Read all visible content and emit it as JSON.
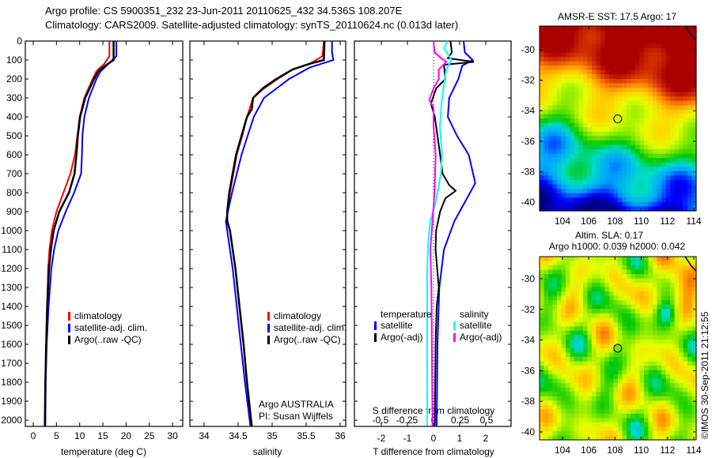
{
  "header": {
    "line1": "Argo profile: CS 5900351_232 23-Jun-2011 20110625_432 34.536S 108.207E",
    "line2": "Climatology: CARS2009. Satellite-adjusted climatology: synTS_20110624.nc (0.013d later)"
  },
  "colors": {
    "climatology": "#ff0000",
    "satellite": "#0000ff",
    "argo": "#000000",
    "sal_satellite": "#00ffff",
    "sal_argo": "#ff00ff"
  },
  "chart_data": [
    {
      "type": "line",
      "name": "temperature",
      "xlabel": "temperature (deg C)",
      "ylabel": "",
      "xlim": [
        -1.7,
        32
      ],
      "ylim": [
        2033,
        0
      ],
      "xticks": [
        "0",
        "5",
        "10",
        "15",
        "20",
        "25",
        "30"
      ],
      "yticks": [
        "0",
        "100",
        "200",
        "300",
        "400",
        "500",
        "600",
        "700",
        "800",
        "900",
        "1000",
        "1100",
        "1200",
        "1300",
        "1400",
        "1500",
        "1600",
        "1700",
        "1800",
        "1900",
        "2000"
      ],
      "legend": [
        "climatology",
        "satellite-adj. clim.",
        "Argo(..raw -QC)"
      ],
      "series": [
        {
          "name": "climatology",
          "color": "#ff0000",
          "depth": [
            0,
            80,
            120,
            160,
            200,
            300,
            400,
            500,
            600,
            700,
            800,
            900,
            1000,
            1100,
            1200,
            1400,
            1600,
            1800,
            2030
          ],
          "values": [
            16.4,
            16.4,
            15.3,
            13.6,
            12.8,
            11.0,
            10.0,
            9.5,
            9.0,
            8.0,
            6.5,
            5.0,
            4.0,
            3.5,
            3.2,
            3.0,
            2.8,
            2.6,
            2.5
          ]
        },
        {
          "name": "satellite-adj. clim.",
          "color": "#0000ff",
          "depth": [
            0,
            80,
            120,
            160,
            200,
            300,
            400,
            500,
            600,
            700,
            800,
            900,
            1000,
            1100,
            1200,
            1400,
            1600,
            1800,
            2030
          ],
          "values": [
            17.9,
            17.9,
            16.2,
            14.5,
            13.6,
            12.0,
            11.0,
            10.6,
            10.5,
            10.3,
            8.8,
            7.0,
            5.4,
            4.5,
            3.9,
            3.3,
            2.9,
            2.7,
            2.6
          ]
        },
        {
          "name": "Argo(..raw -QC)",
          "color": "#000000",
          "depth": [
            0,
            100,
            130,
            160,
            200,
            300,
            400,
            500,
            600,
            700,
            800,
            900,
            1000,
            1100,
            1200,
            1400,
            1600,
            1800,
            2030
          ],
          "values": [
            17.3,
            17.3,
            15.5,
            14.0,
            13.1,
            11.2,
            10.1,
            9.6,
            9.3,
            8.9,
            7.7,
            5.6,
            4.4,
            3.8,
            3.4,
            3.0,
            2.8,
            2.6,
            2.5
          ]
        }
      ]
    },
    {
      "type": "line",
      "name": "salinity",
      "xlabel": "salinity",
      "xlim": [
        33.8,
        36.1
      ],
      "ylim": [
        2033,
        0
      ],
      "xticks": [
        "34",
        "34.5",
        "35",
        "35.5",
        "36"
      ],
      "legend": [
        "climatology",
        "satellite-adj. clim.",
        "Argo(..raw -QC)"
      ],
      "annotation": [
        "Argo AUSTRALIA",
        "PI: Susan Wijffels"
      ],
      "series": [
        {
          "name": "climatology",
          "color": "#ff0000",
          "depth": [
            0,
            80,
            120,
            150,
            200,
            250,
            300,
            400,
            500,
            600,
            700,
            800,
            900,
            950,
            1000,
            1200,
            1400,
            1600,
            1800,
            2030
          ],
          "values": [
            35.76,
            35.74,
            35.55,
            35.3,
            35.08,
            34.88,
            34.72,
            34.63,
            34.56,
            34.48,
            34.43,
            34.38,
            34.34,
            34.34,
            34.38,
            34.46,
            34.52,
            34.58,
            34.63,
            34.7
          ]
        },
        {
          "name": "satellite-adj. clim.",
          "color": "#0000ff",
          "depth": [
            0,
            60,
            100,
            140,
            200,
            300,
            400,
            500,
            600,
            700,
            800,
            900,
            950,
            1000,
            1200,
            1400,
            1600,
            1800,
            2030
          ],
          "values": [
            35.88,
            35.88,
            35.9,
            35.55,
            35.25,
            34.88,
            34.73,
            34.64,
            34.55,
            34.48,
            34.41,
            34.35,
            34.32,
            34.34,
            34.42,
            34.48,
            34.54,
            34.6,
            34.68
          ]
        },
        {
          "name": "Argo(..raw -QC)",
          "color": "#000000",
          "depth": [
            0,
            100,
            120,
            150,
            200,
            250,
            300,
            360,
            400,
            500,
            600,
            700,
            800,
            900,
            950,
            1000,
            1200,
            1400,
            1600,
            1800,
            2030
          ],
          "values": [
            35.77,
            35.76,
            35.55,
            35.3,
            35.06,
            34.86,
            34.72,
            34.7,
            34.63,
            34.55,
            34.47,
            34.42,
            34.37,
            34.34,
            34.34,
            34.38,
            34.46,
            34.52,
            34.58,
            34.63,
            34.7
          ]
        }
      ]
    },
    {
      "type": "line",
      "name": "differences",
      "xlabel": "T difference from climatology",
      "xlabel2": "S difference from climatology",
      "xlim_T": [
        -2.9,
        3.1
      ],
      "xlim_S": [
        -0.72,
        0.77
      ],
      "ylim": [
        2033,
        0
      ],
      "xticks_T": [
        "-2",
        "-1",
        "0",
        "1",
        "2"
      ],
      "xticks_S": [
        "-0.5",
        "-0.25",
        "0",
        "0.25",
        "0.5"
      ],
      "legend": {
        "temperature_title": "temperature",
        "salinity_title": "salinity",
        "t_satellite": "satellite",
        "t_argo": "Argo(-adj)",
        "s_satellite": "satellite",
        "s_argo": "Argo(-adj)"
      },
      "series": [
        {
          "name": "temperature satellite",
          "color": "#0000ff",
          "axis": "T",
          "depth": [
            0,
            60,
            100,
            130,
            200,
            300,
            400,
            500,
            600,
            750,
            850,
            950,
            1100,
            1300,
            1600,
            2030
          ],
          "values": [
            1.15,
            1.2,
            1.5,
            1.1,
            0.95,
            0.6,
            0.55,
            0.9,
            1.35,
            1.6,
            1.2,
            0.8,
            0.4,
            0.22,
            0.15,
            0.12
          ]
        },
        {
          "name": "temperature Argo(-adj)",
          "color": "#000000",
          "axis": "T",
          "depth": [
            0,
            60,
            90,
            110,
            125,
            200,
            250,
            330,
            400,
            500,
            600,
            700,
            760,
            790,
            830,
            900,
            1000,
            1100,
            1300,
            1400,
            1600,
            2030
          ],
          "values": [
            0.65,
            0.7,
            0.55,
            1.55,
            0.4,
            0.45,
            0.1,
            -0.1,
            0.05,
            0.15,
            0.25,
            0.35,
            0.6,
            0.85,
            0.45,
            0.25,
            0.1,
            0.08,
            0.2,
            0.12,
            0.08,
            0.05
          ]
        },
        {
          "name": "salinity satellite",
          "color": "#00ffff",
          "axis": "S",
          "depth": [
            0,
            40,
            100,
            150,
            300,
            450,
            600,
            700,
            850,
            950,
            1050,
            1200,
            2030
          ],
          "values": [
            0.13,
            0.1,
            0.17,
            0.12,
            0.08,
            0.06,
            0.08,
            0.07,
            0.02,
            -0.03,
            -0.05,
            -0.06,
            -0.06
          ]
        },
        {
          "name": "salinity Argo(-adj)",
          "color": "#ff00ff",
          "axis": "S",
          "depth": [
            0,
            60,
            90,
            110,
            150,
            200,
            250,
            310,
            350,
            450,
            600,
            800,
            950,
            1100,
            1300,
            2030
          ],
          "values": [
            0.0,
            0.01,
            0.07,
            0.12,
            0.05,
            0.05,
            0.0,
            -0.04,
            0.0,
            0.0,
            0.02,
            0.01,
            -0.01,
            -0.03,
            -0.02,
            -0.01
          ]
        }
      ]
    },
    {
      "type": "heatmap",
      "name": "sst-map",
      "title": "AMSR-E SST: 17.5 Argo: 17",
      "xlim": [
        102.2,
        114.3
      ],
      "ylim": [
        -40.6,
        -28.5
      ],
      "xticks": [
        "104",
        "106",
        "108",
        "110",
        "112",
        "114"
      ],
      "yticks": [
        "-30",
        "-32",
        "-34",
        "-36",
        "-38",
        "-40"
      ],
      "argo_position": [
        108.207,
        -34.536
      ]
    },
    {
      "type": "heatmap",
      "name": "sla-map",
      "title": "Altim. SLA: 0.17",
      "subtitle": "Argo h1000: 0.039 h2000: 0.042",
      "xlim": [
        102.2,
        114.3
      ],
      "ylim": [
        -40.6,
        -28.5
      ],
      "xticks": [
        "104",
        "106",
        "108",
        "110",
        "112",
        "114"
      ],
      "yticks": [
        "-30",
        "-32",
        "-34",
        "-36",
        "-38",
        "-40"
      ],
      "argo_position": [
        108.207,
        -34.536
      ]
    }
  ],
  "footer": {
    "credit": "©IMOS 30-Sep-2011 21:12:55"
  }
}
